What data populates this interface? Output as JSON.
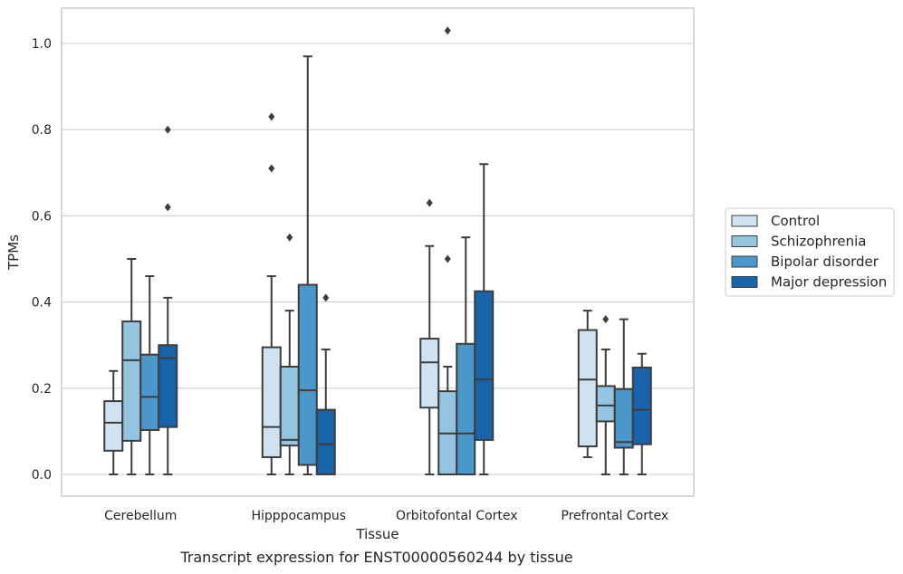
{
  "caption": "Transcript expression for ENST00000560244 by tissue",
  "chart_data": {
    "type": "box",
    "xlabel": "Tissue",
    "ylabel": "TPMs",
    "ylim": [
      -0.05,
      1.08
    ],
    "yticks": [
      0.0,
      0.2,
      0.4,
      0.6,
      0.8,
      1.0
    ],
    "grid": "horizontal",
    "legend_position": "right",
    "categories": [
      "Cerebellum",
      "Hipppocampus",
      "Orbitofontal Cortex",
      "Prefrontal Cortex"
    ],
    "series": [
      {
        "name": "Control",
        "color": "#d0e1f2",
        "boxes": [
          {
            "whislo": 0.0,
            "q1": 0.055,
            "med": 0.12,
            "q3": 0.17,
            "whishi": 0.24,
            "fliers": []
          },
          {
            "whislo": 0.0,
            "q1": 0.04,
            "med": 0.11,
            "q3": 0.295,
            "whishi": 0.46,
            "fliers": [
              0.71,
              0.83
            ]
          },
          {
            "whislo": 0.0,
            "q1": 0.155,
            "med": 0.26,
            "q3": 0.315,
            "whishi": 0.53,
            "fliers": [
              0.63
            ]
          },
          {
            "whislo": 0.04,
            "q1": 0.065,
            "med": 0.22,
            "q3": 0.335,
            "whishi": 0.38,
            "fliers": []
          }
        ]
      },
      {
        "name": "Schizophrenia",
        "color": "#94c4df",
        "boxes": [
          {
            "whislo": 0.0,
            "q1": 0.078,
            "med": 0.265,
            "q3": 0.355,
            "whishi": 0.5,
            "fliers": []
          },
          {
            "whislo": 0.0,
            "q1": 0.067,
            "med": 0.08,
            "q3": 0.25,
            "whishi": 0.38,
            "fliers": [
              0.55
            ]
          },
          {
            "whislo": 0.0,
            "q1": 0.0,
            "med": 0.095,
            "q3": 0.193,
            "whishi": 0.25,
            "fliers": [
              0.5,
              1.03
            ]
          },
          {
            "whislo": 0.0,
            "q1": 0.123,
            "med": 0.16,
            "q3": 0.205,
            "whishi": 0.29,
            "fliers": [
              0.36
            ]
          }
        ]
      },
      {
        "name": "Bipolar disorder",
        "color": "#4a98c9",
        "boxes": [
          {
            "whislo": 0.0,
            "q1": 0.103,
            "med": 0.18,
            "q3": 0.278,
            "whishi": 0.46,
            "fliers": []
          },
          {
            "whislo": 0.0,
            "q1": 0.022,
            "med": 0.195,
            "q3": 0.44,
            "whishi": 0.97,
            "fliers": []
          },
          {
            "whislo": 0.0,
            "q1": 0.0,
            "med": 0.095,
            "q3": 0.303,
            "whishi": 0.55,
            "fliers": []
          },
          {
            "whislo": 0.0,
            "q1": 0.062,
            "med": 0.075,
            "q3": 0.198,
            "whishi": 0.36,
            "fliers": []
          }
        ]
      },
      {
        "name": "Major depression",
        "color": "#1764ab",
        "boxes": [
          {
            "whislo": 0.0,
            "q1": 0.11,
            "med": 0.27,
            "q3": 0.3,
            "whishi": 0.41,
            "fliers": [
              0.62,
              0.8
            ]
          },
          {
            "whislo": 0.0,
            "q1": 0.0,
            "med": 0.07,
            "q3": 0.15,
            "whishi": 0.29,
            "fliers": [
              0.41
            ]
          },
          {
            "whislo": 0.0,
            "q1": 0.08,
            "med": 0.22,
            "q3": 0.425,
            "whishi": 0.72,
            "fliers": []
          },
          {
            "whislo": 0.0,
            "q1": 0.07,
            "med": 0.15,
            "q3": 0.248,
            "whishi": 0.28,
            "fliers": []
          }
        ]
      }
    ]
  }
}
